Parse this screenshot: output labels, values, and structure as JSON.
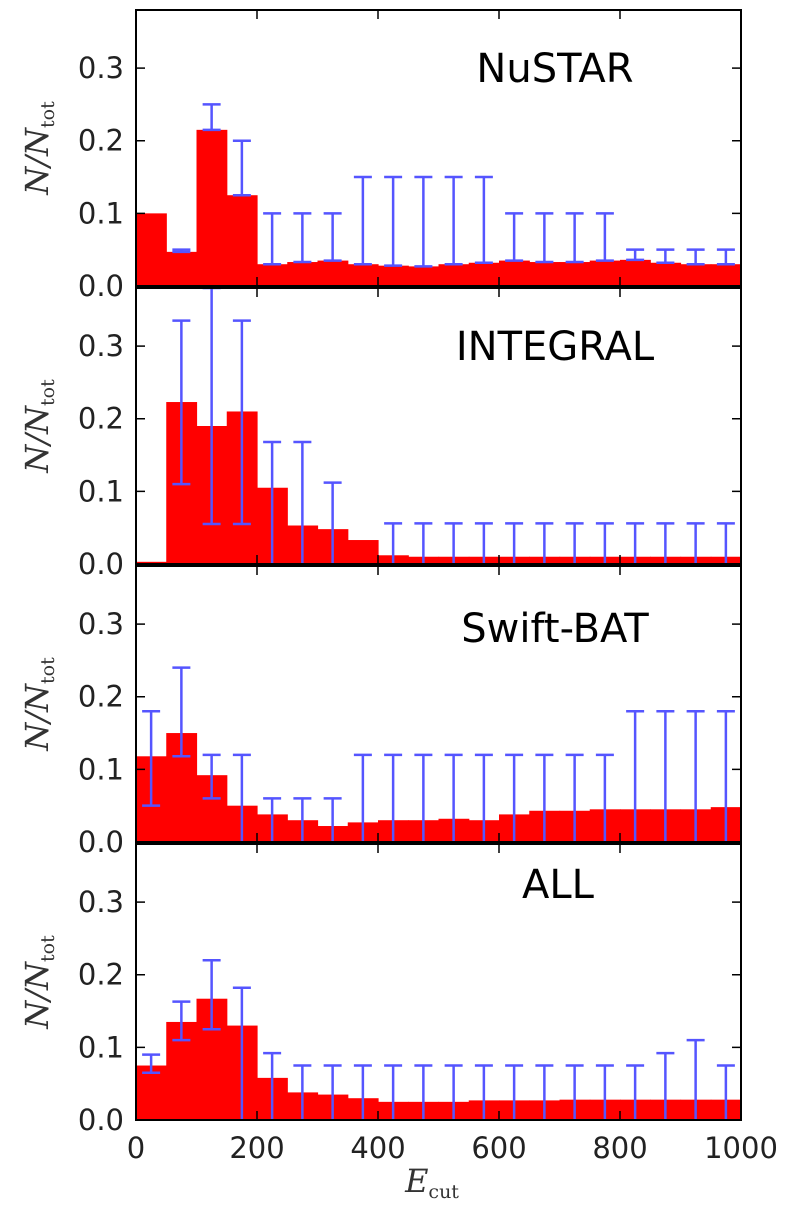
{
  "chart_data": {
    "type": "bar",
    "xlabel": "E",
    "xlabel_sub": "cut",
    "ylabel": "N/N",
    "ylabel_sub": "tot",
    "xlim": [
      0,
      1000
    ],
    "ylim": [
      0,
      0.38
    ],
    "x_ticks": [
      "0",
      "200",
      "400",
      "600",
      "800",
      "1000"
    ],
    "y_ticks": [
      "0.0",
      "0.1",
      "0.2",
      "0.3"
    ],
    "bin_edges": [
      0,
      50,
      100,
      150,
      200,
      250,
      300,
      350,
      400,
      450,
      500,
      550,
      600,
      650,
      700,
      750,
      800,
      850,
      900,
      950,
      1000
    ],
    "colors": {
      "bar": "#ff0000",
      "errorbar": "#5555ff",
      "frame": "#000000"
    },
    "panels": [
      {
        "title": "NuSTAR",
        "values": [
          0.1,
          0.047,
          0.215,
          0.125,
          0.03,
          0.033,
          0.035,
          0.03,
          0.028,
          0.027,
          0.03,
          0.032,
          0.035,
          0.033,
          0.033,
          0.035,
          0.036,
          0.032,
          0.03,
          0.03
        ],
        "err_low": [
          0.1,
          0.047,
          0.215,
          0.125,
          0.03,
          0.033,
          0.035,
          0.03,
          0.028,
          0.027,
          0.03,
          0.032,
          0.035,
          0.033,
          0.033,
          0.035,
          0.036,
          0.032,
          0.03,
          0.03
        ],
        "err_high": [
          0.1,
          0.05,
          0.25,
          0.2,
          0.1,
          0.1,
          0.1,
          0.15,
          0.15,
          0.15,
          0.15,
          0.15,
          0.1,
          0.1,
          0.1,
          0.1,
          0.05,
          0.05,
          0.05,
          0.05
        ]
      },
      {
        "title": "INTEGRAL",
        "values": [
          0.003,
          0.223,
          0.19,
          0.21,
          0.105,
          0.053,
          0.048,
          0.033,
          0.012,
          0.01,
          0.01,
          0.01,
          0.01,
          0.01,
          0.01,
          0.01,
          0.01,
          0.01,
          0.01,
          0.01
        ],
        "err_low": [
          0.0,
          0.11,
          0.055,
          0.055,
          0.0,
          0.0,
          0.0,
          0.0,
          0.0,
          0.0,
          0.0,
          0.0,
          0.0,
          0.0,
          0.0,
          0.0,
          0.0,
          0.0,
          0.0,
          0.0
        ],
        "err_high": [
          0.0,
          0.335,
          0.38,
          0.335,
          0.168,
          0.168,
          0.112,
          0.0,
          0.056,
          0.056,
          0.056,
          0.056,
          0.056,
          0.056,
          0.056,
          0.056,
          0.056,
          0.056,
          0.056,
          0.056
        ]
      },
      {
        "title": "Swift-BAT",
        "values": [
          0.118,
          0.15,
          0.092,
          0.05,
          0.038,
          0.03,
          0.022,
          0.027,
          0.03,
          0.03,
          0.032,
          0.03,
          0.038,
          0.043,
          0.043,
          0.045,
          0.045,
          0.045,
          0.045,
          0.048
        ],
        "err_low": [
          0.05,
          0.118,
          0.06,
          0.0,
          0.0,
          0.0,
          0.0,
          0.0,
          0.0,
          0.0,
          0.0,
          0.0,
          0.0,
          0.0,
          0.0,
          0.0,
          0.0,
          0.0,
          0.0,
          0.0
        ],
        "err_high": [
          0.18,
          0.24,
          0.12,
          0.12,
          0.06,
          0.06,
          0.06,
          0.12,
          0.12,
          0.12,
          0.12,
          0.12,
          0.12,
          0.12,
          0.12,
          0.12,
          0.18,
          0.18,
          0.18,
          0.18
        ]
      },
      {
        "title": "ALL",
        "values": [
          0.075,
          0.135,
          0.167,
          0.13,
          0.058,
          0.038,
          0.035,
          0.03,
          0.025,
          0.025,
          0.025,
          0.027,
          0.027,
          0.027,
          0.028,
          0.028,
          0.028,
          0.028,
          0.028,
          0.028
        ],
        "err_low": [
          0.065,
          0.11,
          0.125,
          0.0,
          0.0,
          0.0,
          0.0,
          0.0,
          0.0,
          0.0,
          0.0,
          0.0,
          0.0,
          0.0,
          0.0,
          0.0,
          0.0,
          0.0,
          0.0,
          0.0
        ],
        "err_high": [
          0.09,
          0.163,
          0.22,
          0.182,
          0.092,
          0.075,
          0.075,
          0.075,
          0.075,
          0.075,
          0.075,
          0.075,
          0.075,
          0.075,
          0.075,
          0.075,
          0.075,
          0.092,
          0.11,
          0.075
        ]
      }
    ]
  }
}
